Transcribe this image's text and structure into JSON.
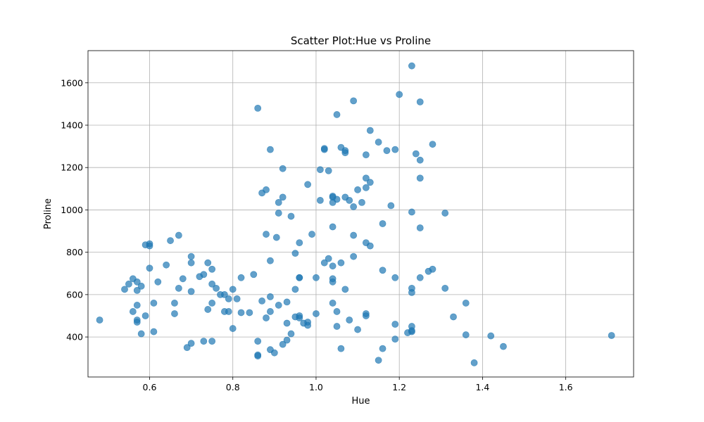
{
  "chart_data": {
    "type": "scatter",
    "title": "Scatter Plot:Hue vs Proline",
    "xlabel": "Hue",
    "ylabel": "Proline",
    "xlim": [
      0.452,
      1.763
    ],
    "ylim": [
      211,
      1752
    ],
    "xticks": [
      0.6,
      0.8,
      1.0,
      1.2,
      1.4,
      1.6
    ],
    "xtick_labels": [
      "0.6",
      "0.8",
      "1.0",
      "1.2",
      "1.4",
      "1.6"
    ],
    "yticks": [
      400,
      600,
      800,
      1000,
      1200,
      1400,
      1600
    ],
    "ytick_labels": [
      "400",
      "600",
      "800",
      "1000",
      "1200",
      "1400",
      "1600"
    ],
    "grid": true,
    "marker_color": "#1f77b4",
    "marker_alpha": 0.7,
    "points": [
      [
        0.48,
        480
      ],
      [
        0.54,
        625
      ],
      [
        0.55,
        650
      ],
      [
        0.56,
        675
      ],
      [
        0.56,
        520
      ],
      [
        0.57,
        660
      ],
      [
        0.57,
        620
      ],
      [
        0.57,
        550
      ],
      [
        0.57,
        480
      ],
      [
        0.57,
        470
      ],
      [
        0.58,
        640
      ],
      [
        0.58,
        415
      ],
      [
        0.59,
        835
      ],
      [
        0.59,
        500
      ],
      [
        0.6,
        840
      ],
      [
        0.6,
        830
      ],
      [
        0.6,
        725
      ],
      [
        0.61,
        560
      ],
      [
        0.61,
        425
      ],
      [
        0.62,
        660
      ],
      [
        0.64,
        740
      ],
      [
        0.65,
        855
      ],
      [
        0.66,
        560
      ],
      [
        0.66,
        510
      ],
      [
        0.67,
        880
      ],
      [
        0.67,
        630
      ],
      [
        0.68,
        675
      ],
      [
        0.69,
        350
      ],
      [
        0.7,
        780
      ],
      [
        0.7,
        750
      ],
      [
        0.7,
        615
      ],
      [
        0.7,
        370
      ],
      [
        0.72,
        685
      ],
      [
        0.73,
        695
      ],
      [
        0.73,
        380
      ],
      [
        0.74,
        750
      ],
      [
        0.74,
        530
      ],
      [
        0.75,
        720
      ],
      [
        0.75,
        650
      ],
      [
        0.75,
        560
      ],
      [
        0.75,
        380
      ],
      [
        0.76,
        630
      ],
      [
        0.77,
        600
      ],
      [
        0.78,
        600
      ],
      [
        0.78,
        520
      ],
      [
        0.79,
        580
      ],
      [
        0.79,
        520
      ],
      [
        0.8,
        625
      ],
      [
        0.8,
        440
      ],
      [
        0.81,
        580
      ],
      [
        0.82,
        680
      ],
      [
        0.82,
        515
      ],
      [
        0.84,
        515
      ],
      [
        0.85,
        695
      ],
      [
        0.86,
        1480
      ],
      [
        0.86,
        380
      ],
      [
        0.86,
        315
      ],
      [
        0.86,
        310
      ],
      [
        0.87,
        1080
      ],
      [
        0.87,
        570
      ],
      [
        0.88,
        1095
      ],
      [
        0.88,
        885
      ],
      [
        0.88,
        490
      ],
      [
        0.89,
        1285
      ],
      [
        0.89,
        760
      ],
      [
        0.89,
        590
      ],
      [
        0.89,
        520
      ],
      [
        0.89,
        340
      ],
      [
        0.9,
        325
      ],
      [
        0.905,
        870
      ],
      [
        0.91,
        1035
      ],
      [
        0.91,
        985
      ],
      [
        0.91,
        550
      ],
      [
        0.92,
        1195
      ],
      [
        0.92,
        1060
      ],
      [
        0.92,
        365
      ],
      [
        0.93,
        565
      ],
      [
        0.93,
        465
      ],
      [
        0.93,
        385
      ],
      [
        0.94,
        970
      ],
      [
        0.94,
        415
      ],
      [
        0.95,
        795
      ],
      [
        0.95,
        625
      ],
      [
        0.95,
        495
      ],
      [
        0.96,
        845
      ],
      [
        0.96,
        680
      ],
      [
        0.96,
        680
      ],
      [
        0.96,
        500
      ],
      [
        0.96,
        490
      ],
      [
        0.97,
        465
      ],
      [
        0.98,
        1120
      ],
      [
        0.98,
        470
      ],
      [
        0.98,
        455
      ],
      [
        0.99,
        885
      ],
      [
        1.0,
        680
      ],
      [
        1.0,
        510
      ],
      [
        1.01,
        1190
      ],
      [
        1.01,
        1045
      ],
      [
        1.02,
        1290
      ],
      [
        1.02,
        1285
      ],
      [
        1.02,
        750
      ],
      [
        1.03,
        1185
      ],
      [
        1.03,
        770
      ],
      [
        1.04,
        1065
      ],
      [
        1.04,
        1060
      ],
      [
        1.04,
        1035
      ],
      [
        1.04,
        920
      ],
      [
        1.04,
        735
      ],
      [
        1.04,
        675
      ],
      [
        1.04,
        660
      ],
      [
        1.04,
        560
      ],
      [
        1.05,
        1450
      ],
      [
        1.05,
        1050
      ],
      [
        1.05,
        520
      ],
      [
        1.05,
        450
      ],
      [
        1.06,
        1295
      ],
      [
        1.06,
        750
      ],
      [
        1.06,
        345
      ],
      [
        1.07,
        1280
      ],
      [
        1.07,
        1270
      ],
      [
        1.07,
        1060
      ],
      [
        1.07,
        625
      ],
      [
        1.08,
        1045
      ],
      [
        1.08,
        480
      ],
      [
        1.09,
        1515
      ],
      [
        1.09,
        1015
      ],
      [
        1.09,
        880
      ],
      [
        1.09,
        780
      ],
      [
        1.1,
        1095
      ],
      [
        1.1,
        435
      ],
      [
        1.11,
        1035
      ],
      [
        1.12,
        1260
      ],
      [
        1.12,
        1150
      ],
      [
        1.12,
        1105
      ],
      [
        1.12,
        845
      ],
      [
        1.12,
        510
      ],
      [
        1.12,
        500
      ],
      [
        1.13,
        1375
      ],
      [
        1.13,
        1130
      ],
      [
        1.13,
        830
      ],
      [
        1.15,
        1320
      ],
      [
        1.15,
        290
      ],
      [
        1.16,
        935
      ],
      [
        1.16,
        715
      ],
      [
        1.16,
        345
      ],
      [
        1.17,
        1280
      ],
      [
        1.18,
        1020
      ],
      [
        1.19,
        1285
      ],
      [
        1.19,
        680
      ],
      [
        1.19,
        460
      ],
      [
        1.19,
        390
      ],
      [
        1.2,
        1545
      ],
      [
        1.22,
        420
      ],
      [
        1.23,
        1680
      ],
      [
        1.23,
        990
      ],
      [
        1.23,
        630
      ],
      [
        1.23,
        610
      ],
      [
        1.23,
        450
      ],
      [
        1.23,
        430
      ],
      [
        1.23,
        425
      ],
      [
        1.24,
        1265
      ],
      [
        1.25,
        1510
      ],
      [
        1.25,
        1235
      ],
      [
        1.25,
        1150
      ],
      [
        1.25,
        915
      ],
      [
        1.25,
        680
      ],
      [
        1.27,
        710
      ],
      [
        1.28,
        1310
      ],
      [
        1.28,
        720
      ],
      [
        1.31,
        985
      ],
      [
        1.31,
        630
      ],
      [
        1.33,
        495
      ],
      [
        1.36,
        560
      ],
      [
        1.36,
        410
      ],
      [
        1.38,
        278
      ],
      [
        1.42,
        405
      ],
      [
        1.45,
        355
      ],
      [
        1.71,
        407
      ]
    ]
  }
}
